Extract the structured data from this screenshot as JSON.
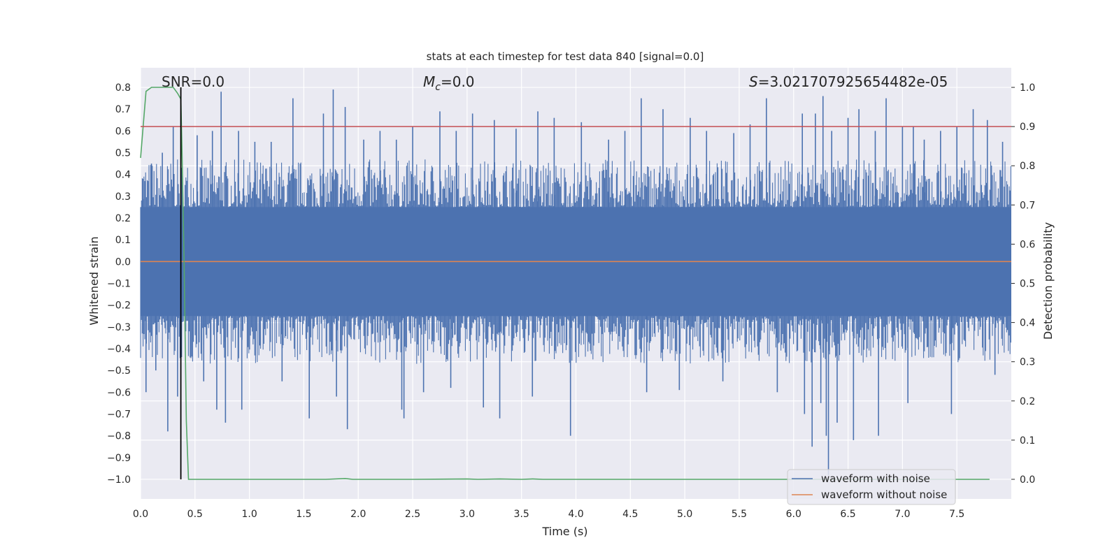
{
  "chart_data": {
    "type": "line",
    "title": "stats at each timestep for test data 840 [signal=0.0]",
    "xlabel": "Time (s)",
    "ylabel": "Whitened strain",
    "ylabel_right": "Detection probability",
    "xlim": [
      0.0,
      8.0
    ],
    "ylim": [
      -1.09,
      0.89
    ],
    "ylim_right": [
      -0.05,
      1.05
    ],
    "x_ticks": [
      "0.0",
      "0.5",
      "1.0",
      "1.5",
      "2.0",
      "2.5",
      "3.0",
      "3.5",
      "4.0",
      "4.5",
      "5.0",
      "5.5",
      "6.0",
      "6.5",
      "7.0",
      "7.5"
    ],
    "y_ticks": [
      "0.8",
      "0.7",
      "0.6",
      "0.5",
      "0.4",
      "0.3",
      "0.2",
      "0.1",
      "0.0",
      "−0.1",
      "−0.2",
      "−0.3",
      "−0.4",
      "−0.5",
      "−0.6",
      "−0.7",
      "−0.8",
      "−0.9",
      "−1.0"
    ],
    "y_ticks_right": [
      "1.0",
      "0.9",
      "0.8",
      "0.7",
      "0.6",
      "0.5",
      "0.4",
      "0.3",
      "0.2",
      "0.1",
      "0.0"
    ],
    "annotations": {
      "snr_prefix": "SNR",
      "snr_value": "=0.0",
      "mc_symbol": "M",
      "mc_subscript": "c",
      "mc_value": "=0.0",
      "s_symbol": "S",
      "s_value": "=3.021707925654482e-05"
    },
    "grid": true,
    "legend_position": "lower-right",
    "colors": {
      "background": "#eaeaf2",
      "noise": "#4c72b0",
      "clean": "#dd8452",
      "probability": "#55a868",
      "threshold": "#c44e52",
      "marker": "#000000"
    },
    "series": [
      {
        "name": "waveform with noise",
        "axis": "left",
        "style": "dense-noise",
        "band": [
          -0.25,
          0.25
        ],
        "spikes": [
          {
            "x": 0.02,
            "y": 0.38
          },
          {
            "x": 0.05,
            "y": -0.6
          },
          {
            "x": 0.1,
            "y": 0.45
          },
          {
            "x": 0.14,
            "y": -0.5
          },
          {
            "x": 0.2,
            "y": 0.5
          },
          {
            "x": 0.25,
            "y": -0.78
          },
          {
            "x": 0.3,
            "y": 0.62
          },
          {
            "x": 0.34,
            "y": -0.62
          },
          {
            "x": 0.52,
            "y": 0.58
          },
          {
            "x": 0.58,
            "y": -0.55
          },
          {
            "x": 0.66,
            "y": 0.6
          },
          {
            "x": 0.7,
            "y": -0.68
          },
          {
            "x": 0.74,
            "y": 0.78
          },
          {
            "x": 0.78,
            "y": -0.74
          },
          {
            "x": 0.9,
            "y": 0.6
          },
          {
            "x": 0.93,
            "y": -0.68
          },
          {
            "x": 1.05,
            "y": 0.55
          },
          {
            "x": 1.2,
            "y": 0.55
          },
          {
            "x": 1.3,
            "y": -0.55
          },
          {
            "x": 1.4,
            "y": 0.75
          },
          {
            "x": 1.55,
            "y": -0.72
          },
          {
            "x": 1.68,
            "y": 0.68
          },
          {
            "x": 1.77,
            "y": 0.79
          },
          {
            "x": 1.8,
            "y": -0.62
          },
          {
            "x": 1.88,
            "y": 0.71
          },
          {
            "x": 1.9,
            "y": -0.77
          },
          {
            "x": 2.05,
            "y": 0.56
          },
          {
            "x": 2.2,
            "y": 0.6
          },
          {
            "x": 2.35,
            "y": 0.56
          },
          {
            "x": 2.4,
            "y": -0.68
          },
          {
            "x": 2.42,
            "y": -0.72
          },
          {
            "x": 2.5,
            "y": 0.62
          },
          {
            "x": 2.6,
            "y": -0.6
          },
          {
            "x": 2.75,
            "y": 0.69
          },
          {
            "x": 2.85,
            "y": -0.58
          },
          {
            "x": 2.9,
            "y": 0.6
          },
          {
            "x": 3.05,
            "y": 0.68
          },
          {
            "x": 3.15,
            "y": -0.67
          },
          {
            "x": 3.25,
            "y": 0.65
          },
          {
            "x": 3.3,
            "y": -0.72
          },
          {
            "x": 3.45,
            "y": 0.61
          },
          {
            "x": 3.6,
            "y": -0.62
          },
          {
            "x": 3.65,
            "y": 0.69
          },
          {
            "x": 3.8,
            "y": 0.66
          },
          {
            "x": 3.95,
            "y": -0.8
          },
          {
            "x": 4.05,
            "y": 0.64
          },
          {
            "x": 4.3,
            "y": 0.56
          },
          {
            "x": 4.45,
            "y": 0.6
          },
          {
            "x": 4.6,
            "y": 0.75
          },
          {
            "x": 4.65,
            "y": -0.6
          },
          {
            "x": 4.8,
            "y": 0.7
          },
          {
            "x": 4.95,
            "y": -0.59
          },
          {
            "x": 5.05,
            "y": 0.66
          },
          {
            "x": 5.2,
            "y": 0.6
          },
          {
            "x": 5.35,
            "y": -0.55
          },
          {
            "x": 5.45,
            "y": 0.59
          },
          {
            "x": 5.6,
            "y": 0.63
          },
          {
            "x": 5.75,
            "y": 0.75
          },
          {
            "x": 5.85,
            "y": -0.6
          },
          {
            "x": 6.08,
            "y": 0.68
          },
          {
            "x": 6.1,
            "y": -0.7
          },
          {
            "x": 6.17,
            "y": -0.85
          },
          {
            "x": 6.2,
            "y": 0.68
          },
          {
            "x": 6.25,
            "y": -0.65
          },
          {
            "x": 6.27,
            "y": 0.76
          },
          {
            "x": 6.3,
            "y": -0.8
          },
          {
            "x": 6.32,
            "y": -0.98
          },
          {
            "x": 6.35,
            "y": 0.6
          },
          {
            "x": 6.4,
            "y": -0.74
          },
          {
            "x": 6.5,
            "y": 0.66
          },
          {
            "x": 6.55,
            "y": -0.82
          },
          {
            "x": 6.6,
            "y": 0.7
          },
          {
            "x": 6.75,
            "y": 0.6
          },
          {
            "x": 6.78,
            "y": -0.8
          },
          {
            "x": 6.85,
            "y": 0.75
          },
          {
            "x": 7.0,
            "y": 0.62
          },
          {
            "x": 7.05,
            "y": -0.65
          },
          {
            "x": 7.1,
            "y": 0.62
          },
          {
            "x": 7.2,
            "y": 0.56
          },
          {
            "x": 7.35,
            "y": 0.6
          },
          {
            "x": 7.45,
            "y": -0.7
          },
          {
            "x": 7.5,
            "y": 0.62
          },
          {
            "x": 7.65,
            "y": 0.7
          },
          {
            "x": 7.78,
            "y": 0.65
          },
          {
            "x": 7.85,
            "y": -0.52
          },
          {
            "x": 7.92,
            "y": 0.55
          }
        ]
      },
      {
        "name": "waveform without noise",
        "axis": "left",
        "x": [
          0.0,
          8.0
        ],
        "values": [
          0.0,
          0.0
        ]
      },
      {
        "axis": "right",
        "x": [
          0.0,
          0.05,
          0.1,
          0.15,
          0.2,
          0.25,
          0.3,
          0.34,
          0.37,
          0.38,
          0.4,
          0.42,
          0.44,
          1.0,
          1.7,
          1.88,
          1.95,
          2.5,
          3.0,
          3.1,
          3.3,
          3.5,
          3.6,
          3.7,
          4.0,
          5.0,
          6.0,
          7.0,
          7.8
        ],
        "values": [
          0.82,
          0.99,
          1.0,
          1.0,
          1.0,
          1.0,
          1.0,
          0.985,
          0.97,
          0.85,
          0.55,
          0.15,
          0.0,
          0.0,
          0.0,
          0.002,
          0.0,
          0.0,
          0.001,
          0.0,
          0.001,
          0.0,
          0.001,
          0.0,
          0.0,
          0.0,
          0.0,
          0.0,
          0.0
        ]
      },
      {
        "axis": "right",
        "style": "threshold",
        "x": [
          0.0,
          8.0
        ],
        "values": [
          0.9,
          0.9
        ]
      }
    ],
    "marker": {
      "x": 0.37,
      "y_range": [
        -1.0,
        0.8
      ]
    }
  }
}
